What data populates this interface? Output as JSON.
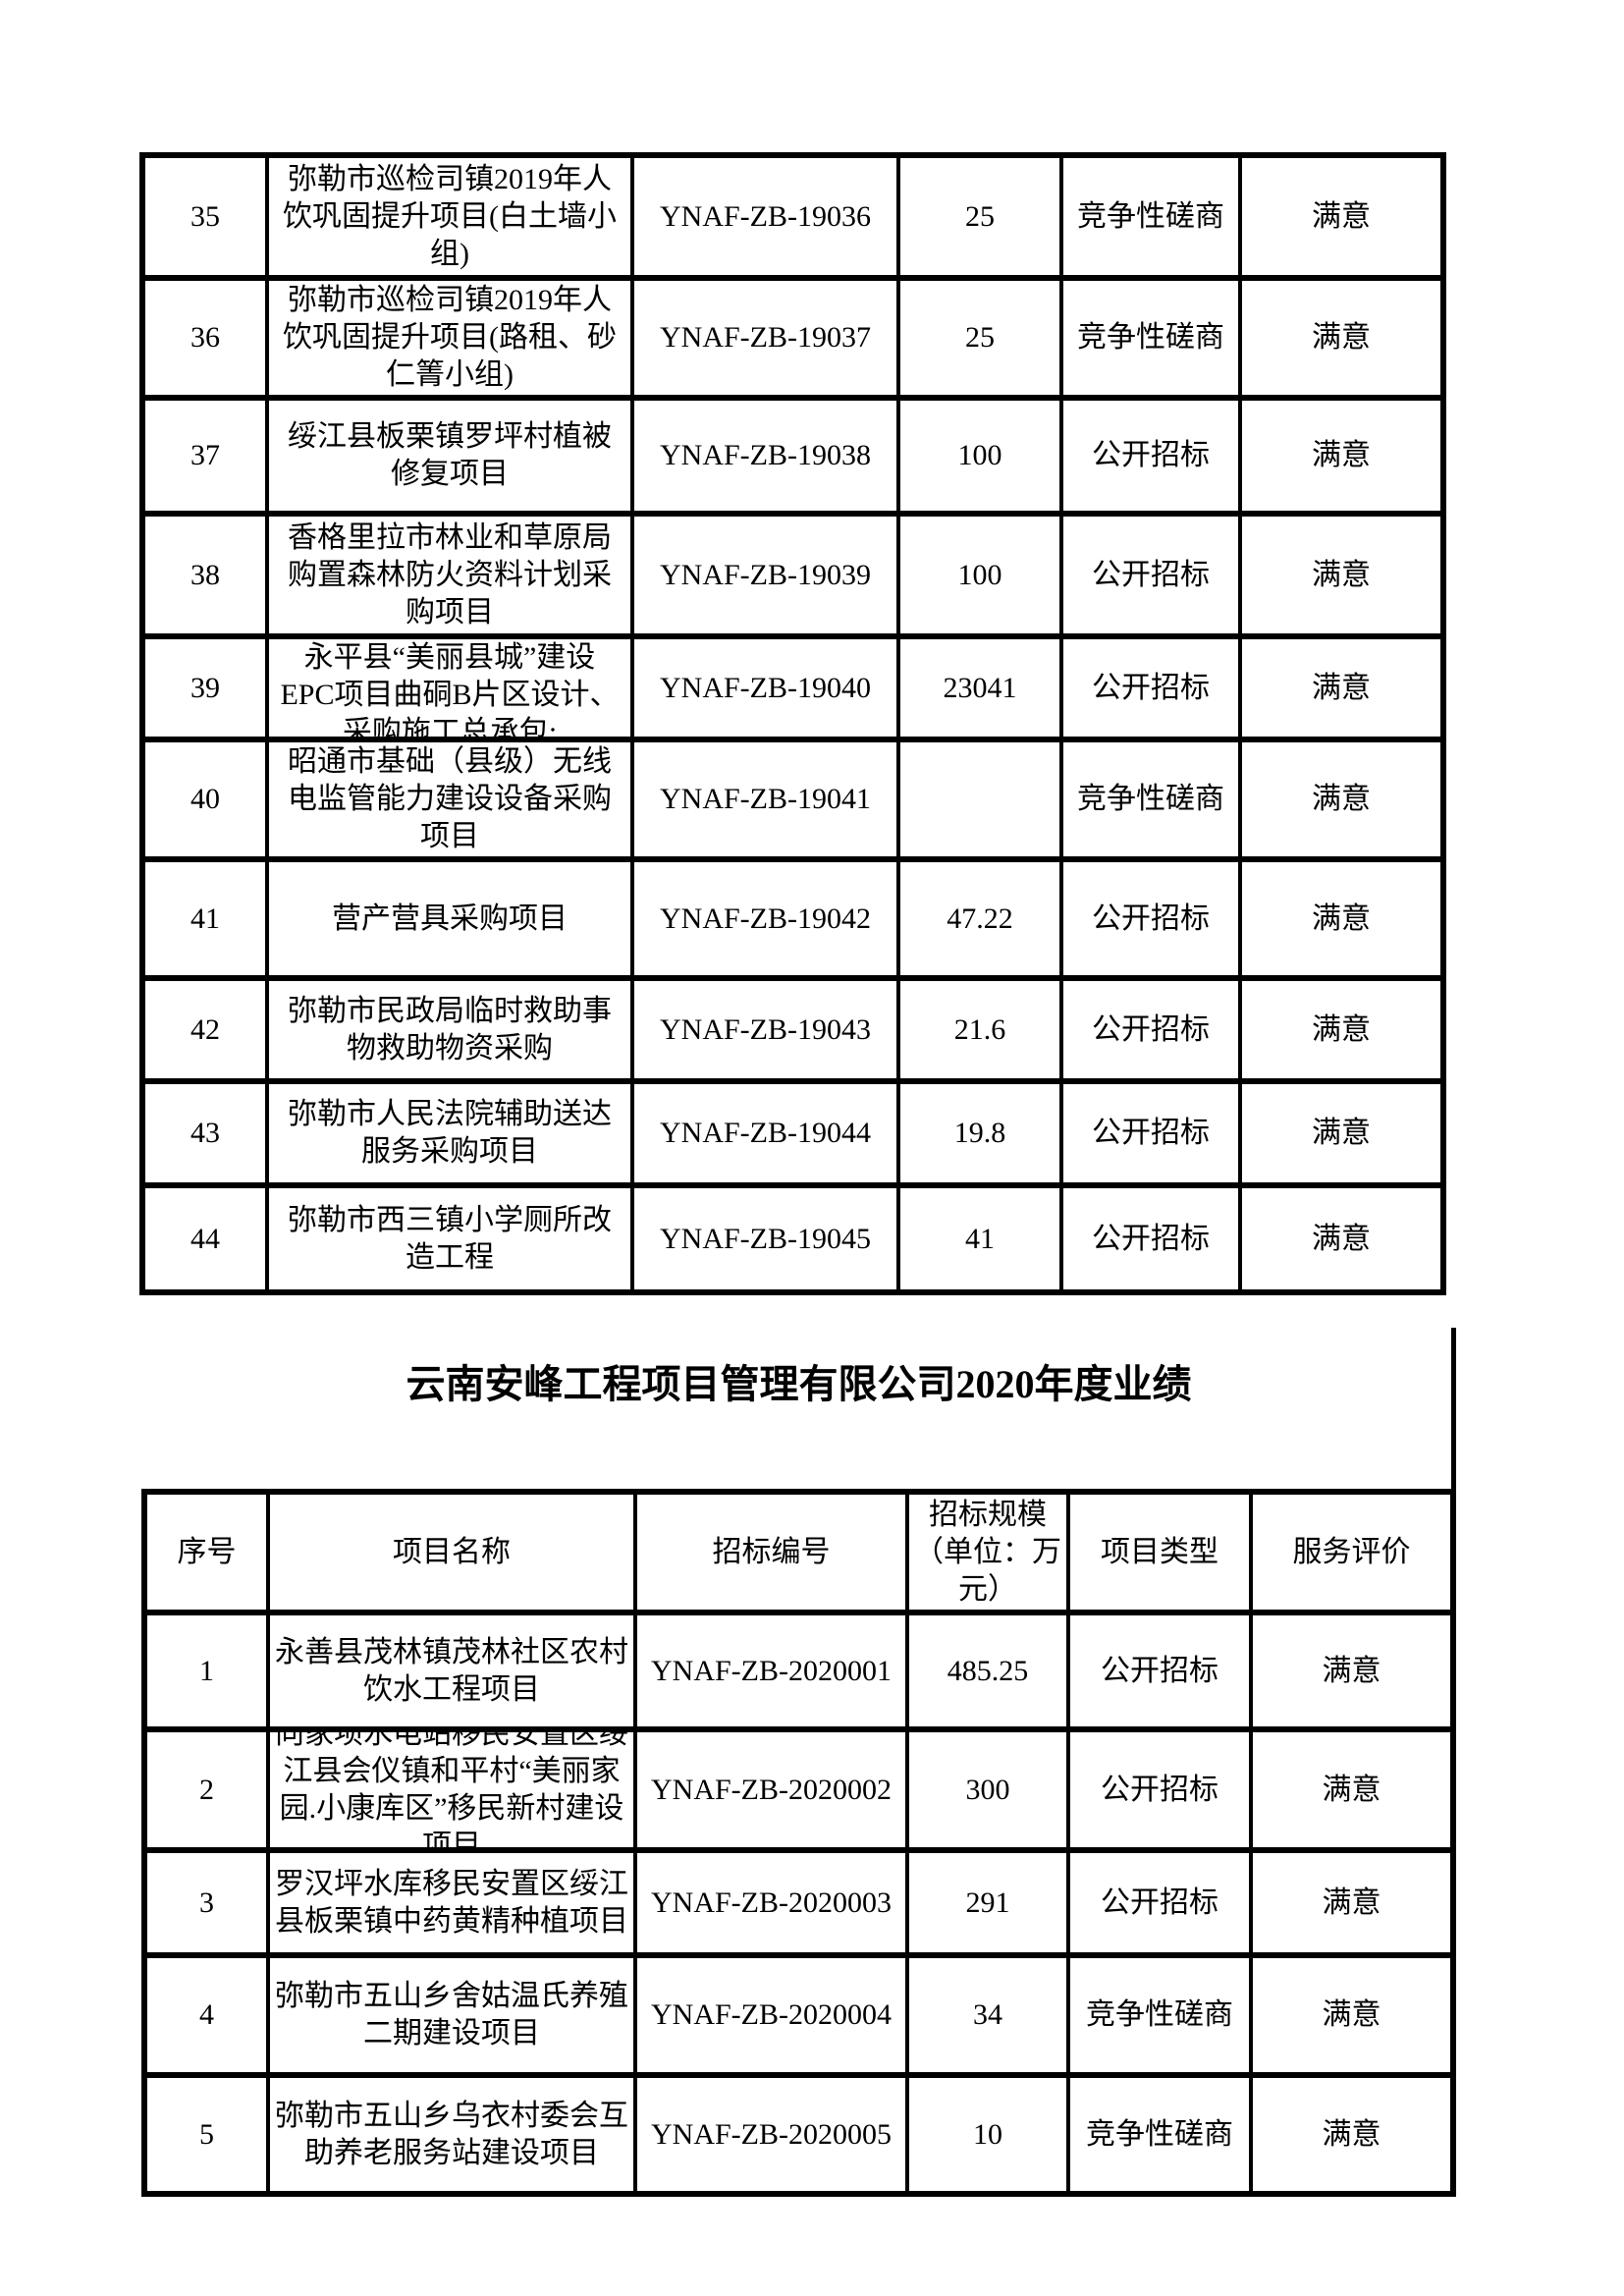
{
  "document": {
    "background": "#ffffff",
    "text_color": "#000000",
    "border_color": "#000000"
  },
  "table1": {
    "rows": [
      {
        "no": "35",
        "name": "弥勒市巡检司镇2019年人\n饮巩固提升项目(白土墙小\n组)",
        "code": "YNAF-ZB-19036",
        "scale": "25",
        "type": "竞争性磋商",
        "evaluation": "满意"
      },
      {
        "no": "36",
        "name": "弥勒市巡检司镇2019年人\n饮巩固提升项目(路租、砂\n仁箐小组)",
        "code": "YNAF-ZB-19037",
        "scale": "25",
        "type": "竞争性磋商",
        "evaluation": "满意"
      },
      {
        "no": "37",
        "name": "绥江县板栗镇罗坪村植被\n修复项目",
        "code": "YNAF-ZB-19038",
        "scale": "100",
        "type": "公开招标",
        "evaluation": "满意"
      },
      {
        "no": "38",
        "name": "香格里拉市林业和草原局\n购置森林防火资料计划采\n购项目",
        "code": "YNAF-ZB-19039",
        "scale": "100",
        "type": "公开招标",
        "evaluation": "满意"
      },
      {
        "no": "39",
        "name": "永平县“美丽县城”建设\nEPC项目曲硐B片区设计、\n采购施工总承包;",
        "code": "YNAF-ZB-19040",
        "scale": "23041",
        "type": "公开招标",
        "evaluation": "满意"
      },
      {
        "no": "40",
        "name": "昭通市基础（县级）无线\n电监管能力建设设备采购\n项目",
        "code": "YNAF-ZB-19041",
        "scale": "",
        "type": "竞争性磋商",
        "evaluation": "满意"
      },
      {
        "no": "41",
        "name": "营产营具采购项目",
        "code": "YNAF-ZB-19042",
        "scale": "47.22",
        "type": "公开招标",
        "evaluation": "满意"
      },
      {
        "no": "42",
        "name": "弥勒市民政局临时救助事\n物救助物资采购",
        "code": "YNAF-ZB-19043",
        "scale": "21.6",
        "type": "公开招标",
        "evaluation": "满意"
      },
      {
        "no": "43",
        "name": "弥勒市人民法院辅助送达\n服务采购项目",
        "code": "YNAF-ZB-19044",
        "scale": "19.8",
        "type": "公开招标",
        "evaluation": "满意"
      },
      {
        "no": "44",
        "name": "弥勒市西三镇小学厕所改\n造工程",
        "code": "YNAF-ZB-19045",
        "scale": "41",
        "type": "公开招标",
        "evaluation": "满意"
      }
    ]
  },
  "section2": {
    "title": "云南安峰工程项目管理有限公司2020年度业绩",
    "header": {
      "no": "序号",
      "name": "项目名称",
      "code": "招标编号",
      "scale": "招标规模\n（单位：万\n元）",
      "type": "项目类型",
      "evaluation": "服务评价"
    },
    "rows": [
      {
        "no": "1",
        "name": "永善县茂林镇茂林社区农村\n饮水工程项目",
        "code": "YNAF-ZB-2020001",
        "scale": "485.25",
        "type": "公开招标",
        "evaluation": "满意"
      },
      {
        "no": "2",
        "name": "向家坝水电站移民安置区绥\n江县会仪镇和平村“美丽家\n园.小康库区”移民新村建设\n项目",
        "code": "YNAF-ZB-2020002",
        "scale": "300",
        "type": "公开招标",
        "evaluation": "满意"
      },
      {
        "no": "3",
        "name": "罗汉坪水库移民安置区绥江\n县板栗镇中药黄精种植项目",
        "code": "YNAF-ZB-2020003",
        "scale": "291",
        "type": "公开招标",
        "evaluation": "满意"
      },
      {
        "no": "4",
        "name": "弥勒市五山乡舍姑温氏养殖\n二期建设项目",
        "code": "YNAF-ZB-2020004",
        "scale": "34",
        "type": "竞争性磋商",
        "evaluation": "满意"
      },
      {
        "no": "5",
        "name": "弥勒市五山乡乌衣村委会互\n助养老服务站建设项目",
        "code": "YNAF-ZB-2020005",
        "scale": "10",
        "type": "竞争性磋商",
        "evaluation": "满意"
      }
    ]
  }
}
